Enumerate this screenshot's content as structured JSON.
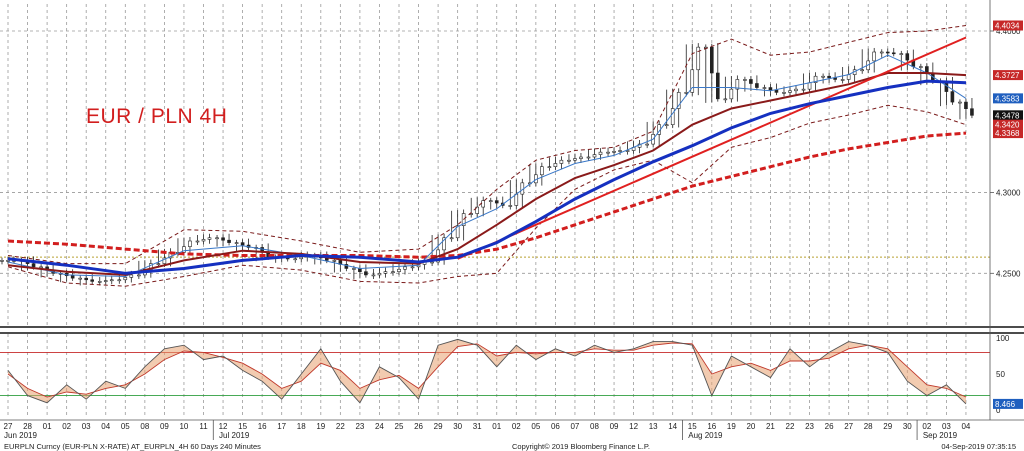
{
  "chart_data": {
    "type": "line",
    "title": "EUR / PLN 4H",
    "instrument": "EURPLN Curncy (EUR-PLN X-RATE) AT_EURPLN_4H 60 Days 240 Minutes",
    "copyright": "Copyright© 2019 Bloomberg Finance L.P.",
    "timestamp": "04-Sep-2019 07:35:15",
    "x_day_labels": [
      "27",
      "28",
      "01",
      "02",
      "03",
      "04",
      "05",
      "08",
      "09",
      "10",
      "11",
      "12",
      "15",
      "16",
      "17",
      "18",
      "19",
      "22",
      "23",
      "24",
      "25",
      "26",
      "29",
      "30",
      "31",
      "01",
      "02",
      "05",
      "06",
      "07",
      "08",
      "09",
      "12",
      "13",
      "14",
      "15",
      "16",
      "19",
      "20",
      "21",
      "22",
      "23",
      "26",
      "27",
      "28",
      "29",
      "30",
      "02",
      "03",
      "04"
    ],
    "month_labels": [
      {
        "label": "Jun 2019",
        "at_index": 0
      },
      {
        "label": "Jul 2019",
        "at_index": 11
      },
      {
        "label": "Aug 2019",
        "at_index": 35
      },
      {
        "label": "Sep 2019",
        "at_index": 47
      }
    ],
    "price_axis": {
      "ylim": [
        4.218,
        4.413
      ],
      "ticks": [
        {
          "value": 4.25,
          "label": "4.2500"
        },
        {
          "value": 4.3,
          "label": "4.3000"
        },
        {
          "value": 4.4,
          "label": "4.4000"
        }
      ],
      "badges": [
        {
          "label": "4.4034",
          "value": 4.4034,
          "color": "#c62828"
        },
        {
          "label": "4.3727",
          "value": 4.3727,
          "color": "#c62828"
        },
        {
          "label": "4.3583",
          "value": 4.3583,
          "color": "#1f5fbf"
        },
        {
          "label": "4.3478",
          "value": 4.3478,
          "color": "#111111"
        },
        {
          "label": "4.3420",
          "value": 4.342,
          "color": "#c62828"
        },
        {
          "label": "4.3368",
          "value": 4.3368,
          "color": "#c62828"
        }
      ],
      "reference_level": 4.26
    },
    "close": [
      [
        0,
        4.258
      ],
      [
        1,
        4.254
      ],
      [
        2,
        4.25
      ],
      [
        3,
        4.247
      ],
      [
        4,
        4.245
      ],
      [
        5,
        4.246
      ],
      [
        6,
        4.249
      ],
      [
        7,
        4.256
      ],
      [
        8,
        4.263
      ],
      [
        9,
        4.27
      ],
      [
        10,
        4.272
      ],
      [
        11,
        4.269
      ],
      [
        12,
        4.266
      ],
      [
        13,
        4.26
      ],
      [
        14,
        4.259
      ],
      [
        15,
        4.261
      ],
      [
        16,
        4.258
      ],
      [
        17,
        4.253
      ],
      [
        18,
        4.249
      ],
      [
        19,
        4.251
      ],
      [
        20,
        4.254
      ],
      [
        21,
        4.257
      ],
      [
        22,
        4.272
      ],
      [
        23,
        4.287
      ],
      [
        24,
        4.295
      ],
      [
        25,
        4.292
      ],
      [
        26,
        4.306
      ],
      [
        27,
        4.316
      ],
      [
        28,
        4.32
      ],
      [
        29,
        4.322
      ],
      [
        30,
        4.325
      ],
      [
        31,
        4.326
      ],
      [
        32,
        4.33
      ],
      [
        33,
        4.342
      ],
      [
        34,
        4.362
      ],
      [
        35,
        4.39
      ],
      [
        36,
        4.358
      ],
      [
        37,
        4.37
      ],
      [
        38,
        4.365
      ],
      [
        39,
        4.362
      ],
      [
        40,
        4.364
      ],
      [
        41,
        4.372
      ],
      [
        42,
        4.37
      ],
      [
        43,
        4.376
      ],
      [
        44,
        4.387
      ],
      [
        45,
        4.386
      ],
      [
        46,
        4.378
      ],
      [
        47,
        4.369
      ],
      [
        48,
        4.356
      ],
      [
        49,
        4.3478
      ]
    ],
    "ma_fast": [
      [
        0,
        4.257
      ],
      [
        3,
        4.249
      ],
      [
        6,
        4.248
      ],
      [
        9,
        4.264
      ],
      [
        12,
        4.267
      ],
      [
        15,
        4.261
      ],
      [
        18,
        4.253
      ],
      [
        21,
        4.255
      ],
      [
        23,
        4.279
      ],
      [
        25,
        4.29
      ],
      [
        27,
        4.308
      ],
      [
        29,
        4.318
      ],
      [
        31,
        4.323
      ],
      [
        33,
        4.333
      ],
      [
        35,
        4.365
      ],
      [
        37,
        4.365
      ],
      [
        39,
        4.363
      ],
      [
        41,
        4.368
      ],
      [
        43,
        4.373
      ],
      [
        45,
        4.385
      ],
      [
        47,
        4.374
      ],
      [
        49,
        4.3583
      ]
    ],
    "ma_mid": [
      [
        0,
        4.255
      ],
      [
        3,
        4.251
      ],
      [
        6,
        4.249
      ],
      [
        9,
        4.258
      ],
      [
        12,
        4.264
      ],
      [
        15,
        4.262
      ],
      [
        18,
        4.257
      ],
      [
        21,
        4.256
      ],
      [
        23,
        4.265
      ],
      [
        25,
        4.28
      ],
      [
        27,
        4.296
      ],
      [
        29,
        4.309
      ],
      [
        31,
        4.317
      ],
      [
        33,
        4.326
      ],
      [
        35,
        4.342
      ],
      [
        37,
        4.352
      ],
      [
        39,
        4.357
      ],
      [
        41,
        4.362
      ],
      [
        43,
        4.367
      ],
      [
        45,
        4.374
      ],
      [
        47,
        4.374
      ],
      [
        49,
        4.3727
      ]
    ],
    "ma_slow": [
      [
        0,
        4.259
      ],
      [
        3,
        4.255
      ],
      [
        6,
        4.25
      ],
      [
        9,
        4.253
      ],
      [
        12,
        4.258
      ],
      [
        15,
        4.261
      ],
      [
        18,
        4.26
      ],
      [
        21,
        4.257
      ],
      [
        23,
        4.26
      ],
      [
        25,
        4.269
      ],
      [
        27,
        4.282
      ],
      [
        29,
        4.296
      ],
      [
        31,
        4.308
      ],
      [
        33,
        4.319
      ],
      [
        35,
        4.329
      ],
      [
        37,
        4.34
      ],
      [
        39,
        4.349
      ],
      [
        41,
        4.355
      ],
      [
        43,
        4.36
      ],
      [
        45,
        4.365
      ],
      [
        47,
        4.369
      ],
      [
        49,
        4.368
      ]
    ],
    "ma_long": [
      [
        0,
        4.27
      ],
      [
        3,
        4.268
      ],
      [
        6,
        4.265
      ],
      [
        9,
        4.262
      ],
      [
        12,
        4.261
      ],
      [
        15,
        4.261
      ],
      [
        18,
        4.261
      ],
      [
        21,
        4.26
      ],
      [
        23,
        4.261
      ],
      [
        25,
        4.265
      ],
      [
        27,
        4.272
      ],
      [
        29,
        4.28
      ],
      [
        31,
        4.288
      ],
      [
        33,
        4.296
      ],
      [
        35,
        4.304
      ],
      [
        37,
        4.31
      ],
      [
        39,
        4.316
      ],
      [
        41,
        4.322
      ],
      [
        43,
        4.327
      ],
      [
        45,
        4.331
      ],
      [
        47,
        4.335
      ],
      [
        49,
        4.3368
      ]
    ],
    "bb_upper": [
      [
        0,
        4.261
      ],
      [
        3,
        4.256
      ],
      [
        6,
        4.256
      ],
      [
        9,
        4.277
      ],
      [
        12,
        4.276
      ],
      [
        15,
        4.27
      ],
      [
        18,
        4.263
      ],
      [
        21,
        4.265
      ],
      [
        23,
        4.28
      ],
      [
        25,
        4.302
      ],
      [
        27,
        4.32
      ],
      [
        29,
        4.326
      ],
      [
        31,
        4.328
      ],
      [
        33,
        4.338
      ],
      [
        35,
        4.386
      ],
      [
        37,
        4.395
      ],
      [
        39,
        4.385
      ],
      [
        41,
        4.387
      ],
      [
        43,
        4.393
      ],
      [
        45,
        4.399
      ],
      [
        47,
        4.4
      ],
      [
        49,
        4.4034
      ]
    ],
    "bb_lower": [
      [
        0,
        4.254
      ],
      [
        3,
        4.244
      ],
      [
        6,
        4.242
      ],
      [
        9,
        4.248
      ],
      [
        12,
        4.255
      ],
      [
        15,
        4.252
      ],
      [
        18,
        4.245
      ],
      [
        21,
        4.244
      ],
      [
        23,
        4.248
      ],
      [
        25,
        4.25
      ],
      [
        27,
        4.278
      ],
      [
        29,
        4.302
      ],
      [
        31,
        4.314
      ],
      [
        33,
        4.32
      ],
      [
        35,
        4.306
      ],
      [
        37,
        4.328
      ],
      [
        39,
        4.334
      ],
      [
        41,
        4.343
      ],
      [
        43,
        4.348
      ],
      [
        45,
        4.354
      ],
      [
        47,
        4.35
      ],
      [
        49,
        4.342
      ]
    ],
    "trendline": [
      [
        23,
        4.259
      ],
      [
        49,
        4.396
      ]
    ],
    "oscillator": {
      "ylim": [
        0,
        100
      ],
      "levels": [
        80,
        20
      ],
      "badge": {
        "label": "8.466",
        "value": 8.466
      },
      "k": [
        [
          0,
          55
        ],
        [
          1,
          20
        ],
        [
          2,
          10
        ],
        [
          3,
          35
        ],
        [
          4,
          15
        ],
        [
          5,
          40
        ],
        [
          6,
          30
        ],
        [
          7,
          60
        ],
        [
          8,
          85
        ],
        [
          9,
          90
        ],
        [
          10,
          70
        ],
        [
          11,
          75
        ],
        [
          12,
          55
        ],
        [
          13,
          40
        ],
        [
          14,
          15
        ],
        [
          15,
          50
        ],
        [
          16,
          85
        ],
        [
          17,
          40
        ],
        [
          18,
          10
        ],
        [
          19,
          60
        ],
        [
          20,
          45
        ],
        [
          21,
          15
        ],
        [
          22,
          90
        ],
        [
          23,
          98
        ],
        [
          24,
          90
        ],
        [
          25,
          60
        ],
        [
          26,
          90
        ],
        [
          27,
          70
        ],
        [
          28,
          85
        ],
        [
          29,
          75
        ],
        [
          30,
          90
        ],
        [
          31,
          80
        ],
        [
          32,
          85
        ],
        [
          33,
          95
        ],
        [
          34,
          95
        ],
        [
          35,
          90
        ],
        [
          36,
          20
        ],
        [
          37,
          75
        ],
        [
          38,
          60
        ],
        [
          39,
          45
        ],
        [
          40,
          85
        ],
        [
          41,
          60
        ],
        [
          42,
          80
        ],
        [
          43,
          95
        ],
        [
          44,
          90
        ],
        [
          45,
          80
        ],
        [
          46,
          40
        ],
        [
          47,
          20
        ],
        [
          48,
          35
        ],
        [
          49,
          8.466
        ]
      ],
      "d": [
        [
          0,
          50
        ],
        [
          1,
          30
        ],
        [
          2,
          18
        ],
        [
          3,
          25
        ],
        [
          4,
          22
        ],
        [
          5,
          30
        ],
        [
          6,
          35
        ],
        [
          7,
          50
        ],
        [
          8,
          70
        ],
        [
          9,
          82
        ],
        [
          10,
          80
        ],
        [
          11,
          73
        ],
        [
          12,
          65
        ],
        [
          13,
          50
        ],
        [
          14,
          30
        ],
        [
          15,
          40
        ],
        [
          16,
          65
        ],
        [
          17,
          55
        ],
        [
          18,
          30
        ],
        [
          19,
          42
        ],
        [
          20,
          48
        ],
        [
          21,
          30
        ],
        [
          22,
          60
        ],
        [
          23,
          88
        ],
        [
          24,
          92
        ],
        [
          25,
          75
        ],
        [
          26,
          80
        ],
        [
          27,
          78
        ],
        [
          28,
          80
        ],
        [
          29,
          80
        ],
        [
          30,
          85
        ],
        [
          31,
          83
        ],
        [
          32,
          83
        ],
        [
          33,
          90
        ],
        [
          34,
          93
        ],
        [
          35,
          92
        ],
        [
          36,
          50
        ],
        [
          37,
          60
        ],
        [
          38,
          65
        ],
        [
          39,
          55
        ],
        [
          40,
          68
        ],
        [
          41,
          68
        ],
        [
          42,
          72
        ],
        [
          43,
          85
        ],
        [
          44,
          90
        ],
        [
          45,
          85
        ],
        [
          46,
          60
        ],
        [
          47,
          35
        ],
        [
          48,
          30
        ],
        [
          49,
          18
        ]
      ]
    }
  }
}
